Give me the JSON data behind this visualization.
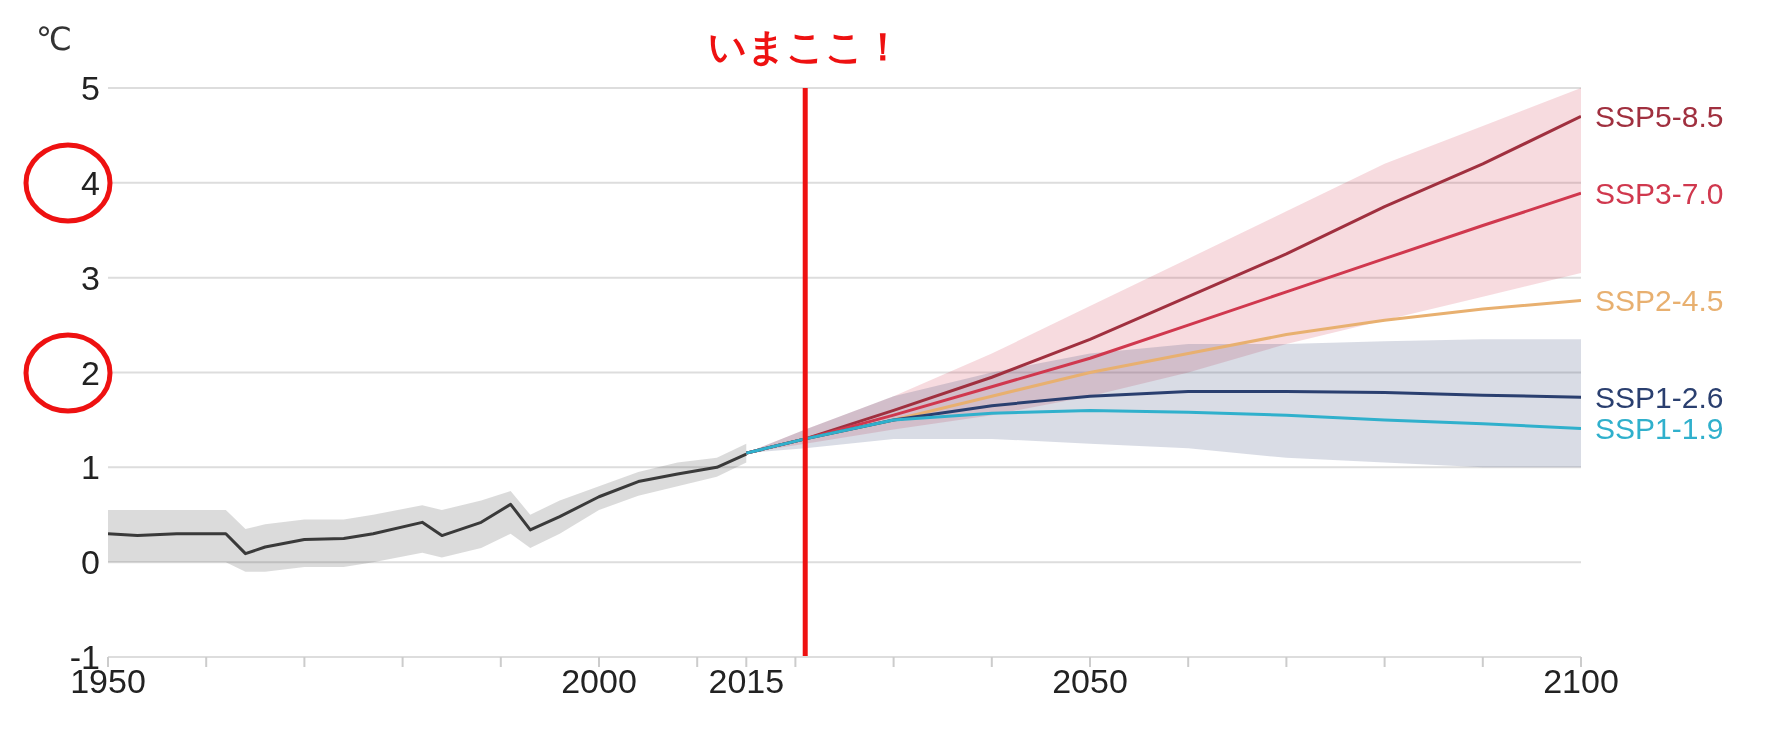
{
  "chart_data": {
    "type": "line",
    "ylabel": "℃",
    "xlim": [
      1950,
      2100
    ],
    "ylim": [
      -1,
      5
    ],
    "xticks": [
      1950,
      {
        "value": 1960,
        "label": null
      },
      {
        "value": 1970,
        "label": null
      },
      {
        "value": 1980,
        "label": null
      },
      {
        "value": 1990,
        "label": null
      },
      2000,
      {
        "value": 2010,
        "label": null
      },
      2015,
      {
        "value": 2020,
        "label": null
      },
      {
        "value": 2030,
        "label": null
      },
      {
        "value": 2040,
        "label": null
      },
      2050,
      {
        "value": 2060,
        "label": null
      },
      {
        "value": 2070,
        "label": null
      },
      {
        "value": 2080,
        "label": null
      },
      {
        "value": 2090,
        "label": null
      },
      2100
    ],
    "yticks": [
      -1,
      0,
      1,
      2,
      3,
      4,
      5
    ],
    "grid": "y",
    "marker": "none",
    "line_style": "solid",
    "series": [
      {
        "color": "#3a3a3a",
        "x": [
          1950,
          1953,
          1957,
          1962,
          1964,
          1966,
          1970,
          1974,
          1977,
          1982,
          1984,
          1988,
          1991,
          1993,
          1996,
          2000,
          2004,
          2008,
          2012,
          2015
        ],
        "values": [
          0.3,
          0.28,
          0.3,
          0.3,
          0.09,
          0.16,
          0.24,
          0.25,
          0.3,
          0.42,
          0.28,
          0.42,
          0.61,
          0.34,
          0.48,
          0.69,
          0.85,
          0.93,
          1.0,
          1.14
        ],
        "lower": [
          0.0,
          0.0,
          0.0,
          0.0,
          -0.1,
          -0.1,
          -0.05,
          -0.05,
          0.0,
          0.1,
          0.05,
          0.15,
          0.3,
          0.15,
          0.3,
          0.55,
          0.7,
          0.8,
          0.9,
          1.05
        ],
        "upper": [
          0.55,
          0.55,
          0.55,
          0.55,
          0.35,
          0.4,
          0.45,
          0.45,
          0.5,
          0.6,
          0.55,
          0.65,
          0.75,
          0.5,
          0.65,
          0.8,
          0.95,
          1.05,
          1.1,
          1.25
        ]
      },
      {
        "name": "SSP5-8.5",
        "color": "#a0303f",
        "x": [
          2015,
          2021,
          2030,
          2040,
          2050,
          2060,
          2070,
          2080,
          2090,
          2100
        ],
        "values": [
          1.15,
          1.3,
          1.6,
          1.95,
          2.35,
          2.8,
          3.25,
          3.75,
          4.2,
          4.7
        ]
      },
      {
        "name": "SSP3-7.0",
        "color": "#d0384e",
        "x": [
          2015,
          2021,
          2030,
          2040,
          2050,
          2060,
          2070,
          2080,
          2090,
          2100
        ],
        "values": [
          1.15,
          1.3,
          1.55,
          1.85,
          2.15,
          2.5,
          2.85,
          3.2,
          3.55,
          3.89
        ],
        "lower": [
          1.15,
          1.25,
          1.4,
          1.55,
          1.75,
          2.0,
          2.3,
          2.55,
          2.8,
          3.05
        ],
        "upper": [
          1.15,
          1.4,
          1.75,
          2.2,
          2.7,
          3.2,
          3.7,
          4.2,
          4.6,
          5.0
        ]
      },
      {
        "name": "SSP2-4.5",
        "color": "#e8b070",
        "x": [
          2015,
          2021,
          2030,
          2040,
          2050,
          2060,
          2070,
          2080,
          2090,
          2100
        ],
        "values": [
          1.15,
          1.3,
          1.5,
          1.75,
          2.0,
          2.2,
          2.4,
          2.55,
          2.67,
          2.76
        ]
      },
      {
        "name": "SSP1-2.6",
        "color": "#2a3f6f",
        "x": [
          2015,
          2021,
          2030,
          2040,
          2050,
          2060,
          2070,
          2080,
          2090,
          2100
        ],
        "values": [
          1.15,
          1.3,
          1.5,
          1.65,
          1.75,
          1.8,
          1.8,
          1.79,
          1.76,
          1.74
        ],
        "lower": [
          1.15,
          1.2,
          1.3,
          1.3,
          1.25,
          1.2,
          1.1,
          1.05,
          1.0,
          1.0
        ],
        "upper": [
          1.15,
          1.4,
          1.75,
          2.0,
          2.2,
          2.3,
          2.3,
          2.33,
          2.35,
          2.35
        ]
      },
      {
        "name": "SSP1-1.9",
        "color": "#30b0cc",
        "x": [
          2015,
          2021,
          2030,
          2040,
          2050,
          2060,
          2070,
          2080,
          2090,
          2100
        ],
        "values": [
          1.15,
          1.3,
          1.5,
          1.57,
          1.6,
          1.58,
          1.55,
          1.5,
          1.46,
          1.41
        ]
      }
    ],
    "ref_lines": [
      {
        "axis": "x",
        "value": 2021,
        "label": "いまここ！",
        "color": "#ee1111"
      }
    ]
  }
}
